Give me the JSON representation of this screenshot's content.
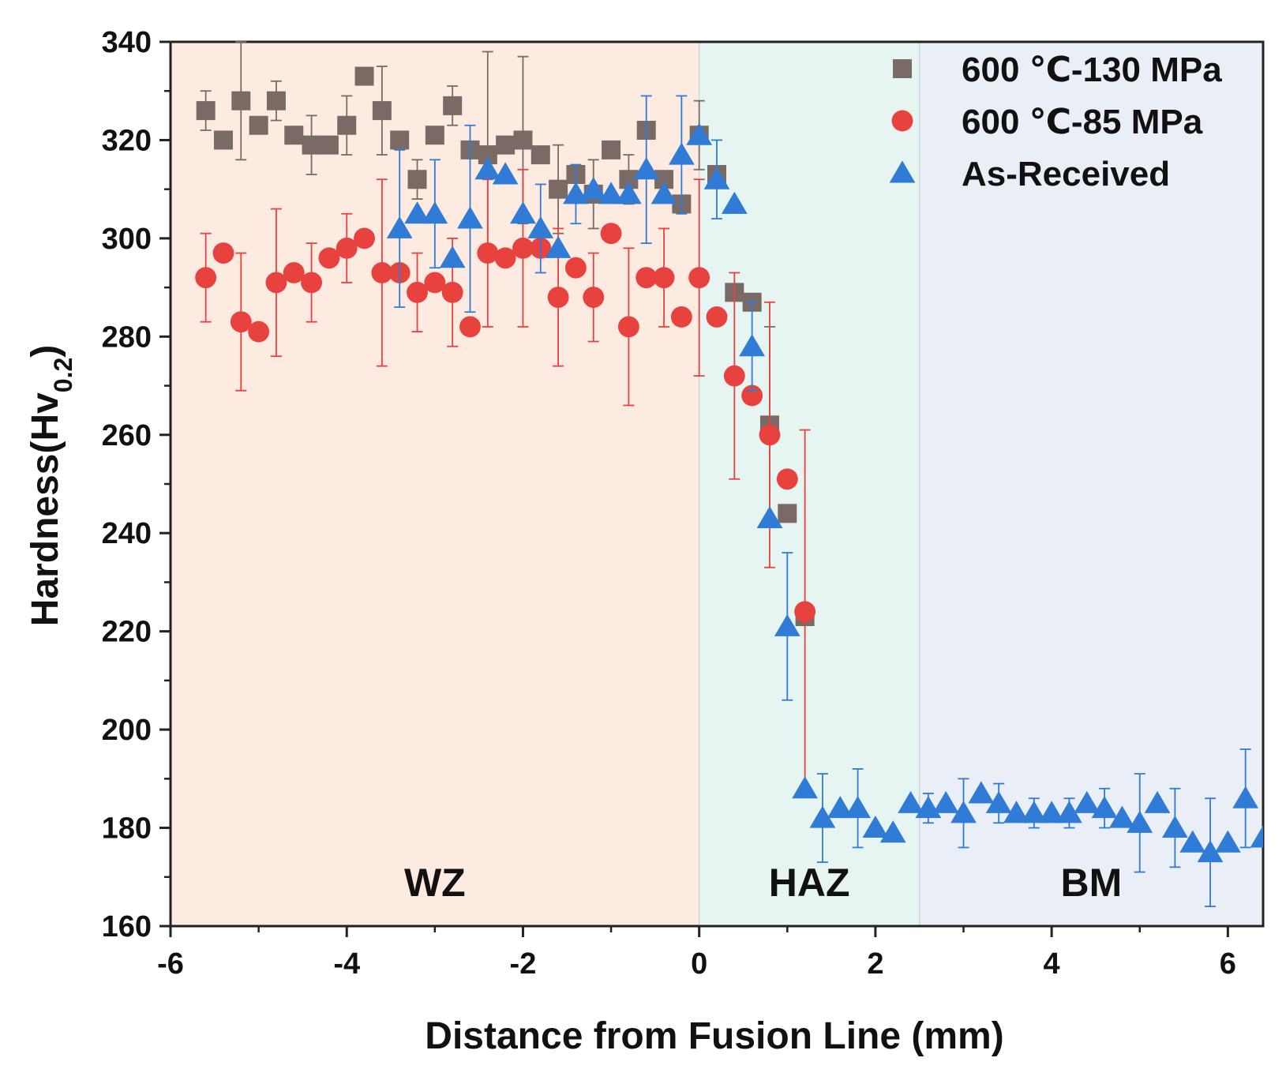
{
  "chart_data": {
    "type": "scatter",
    "title": "",
    "xlabel": "Distance from Fusion Line (mm)",
    "ylabel": {
      "main": "Hardness(Hv",
      "sub": "0.2",
      "close": ")"
    },
    "xlim": [
      -6,
      6.4
    ],
    "ylim": [
      160,
      340
    ],
    "xticks": [
      -6,
      -4,
      -2,
      0,
      2,
      4,
      6
    ],
    "xtick_labels": [
      "-6",
      "-4",
      "-2",
      "0",
      "2",
      "4",
      "6"
    ],
    "yticks": [
      160,
      180,
      200,
      220,
      240,
      260,
      280,
      300,
      320,
      340
    ],
    "ytick_labels": [
      "160",
      "180",
      "200",
      "220",
      "240",
      "260",
      "280",
      "300",
      "320",
      "340"
    ],
    "regions": [
      {
        "name": "WZ",
        "label": "WZ",
        "from": -6,
        "to": 0,
        "color": "#fdeae1"
      },
      {
        "name": "HAZ",
        "label": "HAZ",
        "from": 0,
        "to": 2.5,
        "color": "#e6f5f1"
      },
      {
        "name": "BM",
        "label": "BM",
        "from": 2.5,
        "to": 6.4,
        "color": "#e9eef7"
      }
    ],
    "series": [
      {
        "name": "600 ℃-130 MPa",
        "marker": "square",
        "color": "#7a6a66",
        "x": [
          -5.6,
          -5.4,
          -5.2,
          -5.0,
          -4.8,
          -4.6,
          -4.4,
          -4.2,
          -4.0,
          -3.8,
          -3.6,
          -3.4,
          -3.2,
          -3.0,
          -2.8,
          -2.6,
          -2.4,
          -2.2,
          -2.0,
          -1.8,
          -1.6,
          -1.4,
          -1.2,
          -1.0,
          -0.8,
          -0.6,
          -0.4,
          -0.2,
          0.0,
          0.2,
          0.4,
          0.6,
          0.8,
          1.0,
          1.2
        ],
        "y": [
          326,
          320,
          328,
          323,
          328,
          321,
          319,
          319,
          323,
          333,
          326,
          320,
          312,
          321,
          327,
          318,
          317,
          319,
          320,
          317,
          310,
          313,
          309,
          318,
          312,
          322,
          312,
          307,
          321,
          313,
          289,
          287,
          262,
          244,
          223
        ],
        "err": [
          4,
          0,
          12,
          0,
          4,
          0,
          6,
          0,
          6,
          0,
          9,
          0,
          4,
          0,
          4,
          0,
          21,
          0,
          17,
          0,
          9,
          0,
          7,
          0,
          5,
          0,
          0,
          0,
          7,
          0,
          0,
          0,
          20,
          0,
          0
        ]
      },
      {
        "name": "600 ℃-85 MPa",
        "marker": "circle",
        "color": "#e8423f",
        "x": [
          -5.6,
          -5.4,
          -5.2,
          -5.0,
          -4.8,
          -4.6,
          -4.4,
          -4.2,
          -4.0,
          -3.8,
          -3.6,
          -3.4,
          -3.2,
          -3.0,
          -2.8,
          -2.6,
          -2.4,
          -2.2,
          -2.0,
          -1.8,
          -1.6,
          -1.4,
          -1.2,
          -1.0,
          -0.8,
          -0.6,
          -0.4,
          -0.2,
          0.0,
          0.2,
          0.4,
          0.6,
          0.8,
          1.0,
          1.2
        ],
        "y": [
          292,
          297,
          283,
          281,
          291,
          293,
          291,
          296,
          298,
          300,
          293,
          293,
          289,
          291,
          289,
          282,
          297,
          296,
          298,
          298,
          288,
          294,
          288,
          301,
          282,
          292,
          292,
          284,
          292,
          284,
          272,
          268,
          260,
          251,
          224
        ],
        "err": [
          9,
          0,
          14,
          0,
          15,
          0,
          8,
          0,
          7,
          0,
          19,
          0,
          8,
          0,
          11,
          0,
          15,
          0,
          16,
          0,
          14,
          0,
          9,
          0,
          16,
          0,
          10,
          0,
          20,
          0,
          21,
          0,
          27,
          0,
          37
        ]
      },
      {
        "name": "As-Received",
        "marker": "triangle",
        "color": "#2f7bd6",
        "x": [
          -3.4,
          -3.2,
          -3.0,
          -2.8,
          -2.6,
          -2.4,
          -2.2,
          -2.0,
          -1.8,
          -1.6,
          -1.4,
          -1.2,
          -1.0,
          -0.8,
          -0.6,
          -0.4,
          -0.2,
          0.0,
          0.2,
          0.4,
          0.6,
          0.8,
          1.0,
          1.2,
          1.4,
          1.6,
          1.8,
          2.0,
          2.2,
          2.4,
          2.6,
          2.8,
          3.0,
          3.2,
          3.4,
          3.6,
          3.8,
          4.0,
          4.2,
          4.4,
          4.6,
          4.8,
          5.0,
          5.2,
          5.4,
          5.6,
          5.8,
          6.0,
          6.2,
          6.4
        ],
        "y": [
          302,
          305,
          305,
          296,
          304,
          314,
          313,
          305,
          302,
          298,
          309,
          310,
          309,
          309,
          314,
          309,
          317,
          321,
          312,
          307,
          278,
          243,
          221,
          188,
          182,
          184,
          184,
          180,
          179,
          185,
          184,
          185,
          183,
          187,
          185,
          183,
          183,
          183,
          183,
          185,
          184,
          182,
          181,
          185,
          180,
          177,
          175,
          177,
          186,
          178
        ],
        "err": [
          16,
          0,
          11,
          0,
          19,
          0,
          0,
          0,
          9,
          0,
          6,
          0,
          0,
          0,
          15,
          0,
          12,
          0,
          8,
          0,
          9,
          0,
          15,
          0,
          9,
          0,
          8,
          0,
          0,
          0,
          3,
          0,
          7,
          0,
          4,
          0,
          3,
          0,
          3,
          0,
          4,
          0,
          10,
          0,
          8,
          0,
          11,
          0,
          10,
          0
        ]
      }
    ],
    "legend": {
      "position": "top-right"
    }
  }
}
